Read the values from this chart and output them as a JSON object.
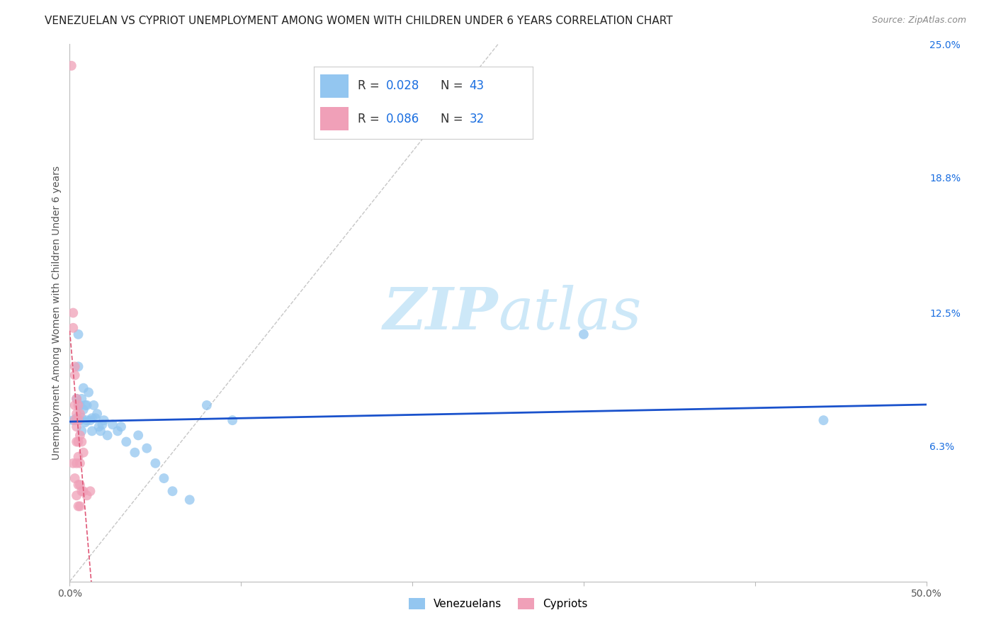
{
  "title": "VENEZUELAN VS CYPRIOT UNEMPLOYMENT AMONG WOMEN WITH CHILDREN UNDER 6 YEARS CORRELATION CHART",
  "source": "Source: ZipAtlas.com",
  "ylabel": "Unemployment Among Women with Children Under 6 years",
  "xlim": [
    0.0,
    0.5
  ],
  "ylim": [
    0.0,
    0.25
  ],
  "xtick_positions": [
    0.0,
    0.1,
    0.2,
    0.3,
    0.4,
    0.5
  ],
  "xtick_labels": [
    "0.0%",
    "",
    "",
    "",
    "",
    "50.0%"
  ],
  "ytick_positions_right": [
    0.0,
    0.063,
    0.125,
    0.188,
    0.25
  ],
  "ytick_labels_right": [
    "",
    "6.3%",
    "12.5%",
    "18.8%",
    "25.0%"
  ],
  "venezuelan_color": "#93c6f0",
  "cypriot_color": "#f0a0b8",
  "trendline_venezuelan_color": "#1a52cc",
  "trendline_cypriot_color": "#e05878",
  "diagonal_color": "#c0c0c0",
  "grid_color": "#d8d8d8",
  "venezuelan_x": [
    0.002,
    0.004,
    0.004,
    0.005,
    0.005,
    0.006,
    0.006,
    0.007,
    0.007,
    0.007,
    0.008,
    0.008,
    0.009,
    0.009,
    0.01,
    0.01,
    0.011,
    0.012,
    0.013,
    0.013,
    0.014,
    0.015,
    0.016,
    0.017,
    0.018,
    0.019,
    0.02,
    0.022,
    0.025,
    0.028,
    0.03,
    0.033,
    0.038,
    0.04,
    0.045,
    0.05,
    0.055,
    0.06,
    0.07,
    0.08,
    0.095,
    0.3,
    0.44
  ],
  "venezuelan_y": [
    0.075,
    0.085,
    0.076,
    0.115,
    0.1,
    0.082,
    0.075,
    0.085,
    0.076,
    0.07,
    0.09,
    0.08,
    0.082,
    0.074,
    0.082,
    0.075,
    0.088,
    0.075,
    0.076,
    0.07,
    0.082,
    0.076,
    0.078,
    0.072,
    0.07,
    0.073,
    0.075,
    0.068,
    0.073,
    0.07,
    0.072,
    0.065,
    0.06,
    0.068,
    0.062,
    0.055,
    0.048,
    0.042,
    0.038,
    0.082,
    0.075,
    0.115,
    0.075
  ],
  "cypriot_x": [
    0.001,
    0.002,
    0.002,
    0.002,
    0.003,
    0.003,
    0.003,
    0.003,
    0.003,
    0.004,
    0.004,
    0.004,
    0.004,
    0.004,
    0.004,
    0.005,
    0.005,
    0.005,
    0.005,
    0.005,
    0.005,
    0.006,
    0.006,
    0.006,
    0.006,
    0.006,
    0.007,
    0.007,
    0.008,
    0.008,
    0.01,
    0.012
  ],
  "cypriot_y": [
    0.24,
    0.125,
    0.118,
    0.055,
    0.1,
    0.096,
    0.082,
    0.075,
    0.048,
    0.085,
    0.078,
    0.072,
    0.065,
    0.055,
    0.04,
    0.082,
    0.075,
    0.065,
    0.058,
    0.045,
    0.035,
    0.078,
    0.068,
    0.055,
    0.045,
    0.035,
    0.065,
    0.042,
    0.06,
    0.042,
    0.04,
    0.042
  ],
  "watermark_zip": "ZIP",
  "watermark_atlas": "atlas",
  "watermark_color": "#cde8f8",
  "background_color": "#ffffff",
  "title_fontsize": 11,
  "source_fontsize": 9,
  "axis_label_fontsize": 10,
  "tick_fontsize": 10,
  "legend_color_blue": "#1a6ee0",
  "legend_color_black": "#333333"
}
